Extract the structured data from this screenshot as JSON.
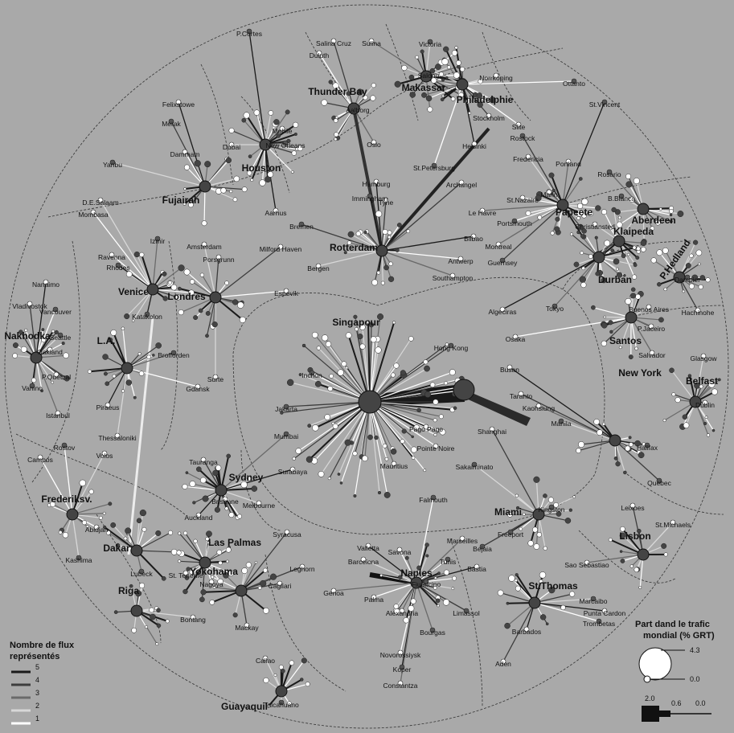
{
  "hubs": [
    {
      "label": "Thunder Bay"
    },
    {
      "label": "Makassar"
    },
    {
      "label": "Philadelphie"
    },
    {
      "label": "Houston"
    },
    {
      "label": "Fujairah"
    },
    {
      "label": "Rotterdam"
    },
    {
      "label": "Papeete"
    },
    {
      "label": "Aberdeen"
    },
    {
      "label": "Klaipeda"
    },
    {
      "label": "P.Hedland"
    },
    {
      "label": "Durban"
    },
    {
      "label": "Venice"
    },
    {
      "label": "Londres"
    },
    {
      "label": "Nakhodka"
    },
    {
      "label": "L.A."
    },
    {
      "label": "Singapour"
    },
    {
      "label": "Santos"
    },
    {
      "label": "Belfast"
    },
    {
      "label": "New York"
    },
    {
      "label": "Sydney"
    },
    {
      "label": "Frederiksv."
    },
    {
      "label": "Miami"
    },
    {
      "label": "Dakar"
    },
    {
      "label": "Las Palmas"
    },
    {
      "label": "Lisbon"
    },
    {
      "label": "Yokohama"
    },
    {
      "label": "Naples"
    },
    {
      "label": "Riga"
    },
    {
      "label": "St.Thomas"
    },
    {
      "label": "Guayaquil"
    }
  ],
  "ports": [
    "P.Cortes",
    "Salina Cruz",
    "Sulina",
    "Victoria",
    "Duluth",
    "Felixstowe",
    "Merak",
    "Salong",
    "Norrkoping",
    "Ottanto",
    "Aalborg",
    "Mobile",
    "New Orleans",
    "Dubai",
    "Slite",
    "St.Vincent",
    "Stockholm",
    "Oslo",
    "Yanbu",
    "Dammam",
    "Helsinki",
    "Rostock",
    "Portland",
    "Fredericia",
    "St.Petersburg",
    "Hamburg",
    "Archangel",
    "Rosario",
    "D.E.Salaam",
    "Mombasa",
    "Immingham",
    "Tyne",
    "Marin",
    "B.Blanca",
    "St.Nazaire",
    "Aarhus",
    "Bremen",
    "Le Havre",
    "Christiansted",
    "Portsmouth",
    "Bilbao",
    "Milford Haven",
    "Izmir",
    "Amsterdam",
    "Ravenna",
    "Rhodes",
    "Porsgrunn",
    "Montreal",
    "Dampier",
    "Antwerp",
    "Nanaimo",
    "Guernsey",
    "Southampton",
    "Bergen",
    "Vancouver",
    "Algeciras",
    "Vladivostok",
    "Tokyo",
    "Buenos Aires",
    "Espevik",
    "Katakolon",
    "Hachinohe",
    "P.Jaceiro",
    "Seattle",
    "Osaka",
    "Oakland",
    "Hong Kong",
    "Salvador",
    "Glasgow",
    "Inchon",
    "Busan",
    "Dublin",
    "Brofforden",
    "Surte",
    "P.Quetzal",
    "Vanino",
    "Taranto",
    "Kaohsiung",
    "Manila",
    "Gdansk",
    "Piraeus",
    "Jakarta",
    "Istanbul",
    "Thessaloniki",
    "Rostov",
    "Pago Pago",
    "Shanghai",
    "Mumbai",
    "Volos",
    "Pointe Noire",
    "Halifax",
    "Tauranga",
    "Mauritius",
    "Sakaiminato",
    "Campos",
    "Surabaya",
    "Quebec",
    "Brisbane",
    "Melbourne",
    "Falmouth",
    "Auckland",
    "Leixoes",
    "Kingston",
    "St.Michaels",
    "Abidjan",
    "Freeport",
    "Syracusa",
    "Marseilles",
    "Kashima",
    "Savona",
    "Valletta",
    "Bejaia",
    "Sao Sebastiao",
    "Barcelona",
    "Tunis",
    "Bastia",
    "Leghorn",
    "Lubeck",
    "St. Tenerife",
    "Nagoya",
    "Fiumicino",
    "Cagliari",
    "Genoa",
    "Marcaibo",
    "Palma",
    "Punta Cardon",
    "Limassol",
    "Alexandria",
    "Bontang",
    "Trombetas",
    "Barbados",
    "Mackay",
    "Bourgas",
    "Callao",
    "Novorossiysk",
    "Koper",
    "Aden",
    "Constantza",
    "Talcahuano"
  ],
  "legend_flux": {
    "title_lines": [
      "Nombre de flux",
      "représentés"
    ],
    "items": [
      "5",
      "4",
      "3",
      "2",
      "1"
    ]
  },
  "legend_share": {
    "title_lines": [
      "Part dand le trafic",
      "mondial (% GRT)"
    ],
    "circle_labels": [
      "4.3",
      "0.0"
    ],
    "bar_labels": [
      "2.0",
      "0.6",
      "0.0"
    ]
  }
}
